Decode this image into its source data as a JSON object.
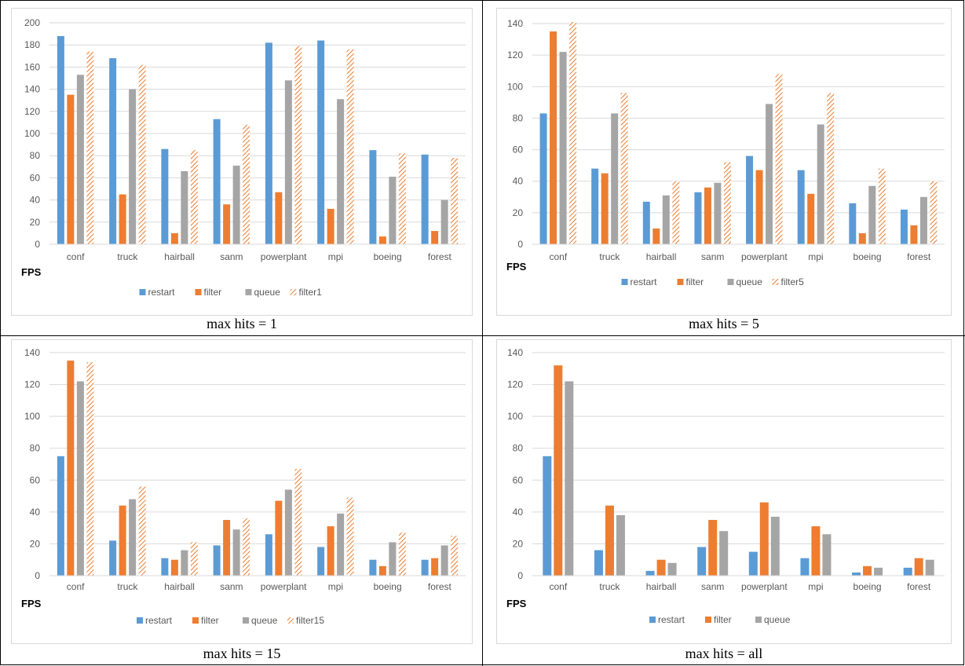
{
  "colors": {
    "restart": "#5b9bd5",
    "filter": "#ed7d31",
    "queue": "#a5a5a5",
    "hatch": "#ed7d31",
    "gridline": "#d9d9d9",
    "axis_text": "#595959",
    "ylabel_text": "#000000"
  },
  "chart_data": [
    {
      "type": "bar",
      "caption": "max hits = 1",
      "ylabel": "FPS",
      "ylim": [
        0,
        200
      ],
      "yticks": [
        0,
        20,
        40,
        60,
        80,
        100,
        120,
        140,
        160,
        180,
        200
      ],
      "categories": [
        "conf",
        "truck",
        "hairball",
        "sanm",
        "powerplant",
        "mpi",
        "boeing",
        "forest"
      ],
      "legend_position": "bottom",
      "grid": true,
      "series": [
        {
          "name": "restart",
          "style": "solid",
          "values": [
            188,
            168,
            86,
            113,
            182,
            184,
            85,
            81
          ]
        },
        {
          "name": "filter",
          "style": "solid",
          "values": [
            135,
            45,
            10,
            36,
            47,
            32,
            7,
            12
          ]
        },
        {
          "name": "queue",
          "style": "solid",
          "values": [
            153,
            140,
            66,
            71,
            148,
            131,
            61,
            40
          ]
        },
        {
          "name": "filter1",
          "style": "hatched",
          "values": [
            174,
            162,
            85,
            108,
            179,
            176,
            82,
            78
          ]
        }
      ]
    },
    {
      "type": "bar",
      "caption": "max hits = 5",
      "ylabel": "FPS",
      "ylim": [
        0,
        140
      ],
      "yticks": [
        0,
        20,
        40,
        60,
        80,
        100,
        120,
        140
      ],
      "categories": [
        "conf",
        "truck",
        "hairball",
        "sanm",
        "powerplant",
        "mpi",
        "boeing",
        "forest"
      ],
      "legend_position": "bottom",
      "grid": true,
      "series": [
        {
          "name": "restart",
          "style": "solid",
          "values": [
            83,
            48,
            27,
            33,
            56,
            47,
            26,
            22
          ]
        },
        {
          "name": "filter",
          "style": "solid",
          "values": [
            135,
            45,
            10,
            36,
            47,
            32,
            7,
            12
          ]
        },
        {
          "name": "queue",
          "style": "solid",
          "values": [
            122,
            83,
            31,
            39,
            89,
            76,
            37,
            30
          ]
        },
        {
          "name": "filter5",
          "style": "hatched",
          "values": [
            141,
            96,
            40,
            52,
            108,
            96,
            48,
            40
          ]
        }
      ]
    },
    {
      "type": "bar",
      "caption": "max hits = 15",
      "ylabel": "FPS",
      "ylim": [
        0,
        140
      ],
      "yticks": [
        0,
        20,
        40,
        60,
        80,
        100,
        120,
        140
      ],
      "categories": [
        "conf",
        "truck",
        "hairball",
        "sanm",
        "powerplant",
        "mpi",
        "boeing",
        "forest"
      ],
      "legend_position": "bottom",
      "grid": true,
      "series": [
        {
          "name": "restart",
          "style": "solid",
          "values": [
            75,
            22,
            11,
            19,
            26,
            18,
            10,
            10
          ]
        },
        {
          "name": "filter",
          "style": "solid",
          "values": [
            135,
            44,
            10,
            35,
            47,
            31,
            6,
            11
          ]
        },
        {
          "name": "queue",
          "style": "solid",
          "values": [
            122,
            48,
            16,
            29,
            54,
            39,
            21,
            19
          ]
        },
        {
          "name": "filter15",
          "style": "hatched",
          "values": [
            134,
            56,
            21,
            36,
            67,
            49,
            27,
            25
          ]
        }
      ]
    },
    {
      "type": "bar",
      "caption": "max hits = all",
      "ylabel": "FPS",
      "ylim": [
        0,
        140
      ],
      "yticks": [
        0,
        20,
        40,
        60,
        80,
        100,
        120,
        140
      ],
      "categories": [
        "conf",
        "truck",
        "hairball",
        "sanm",
        "powerplant",
        "mpi",
        "boeing",
        "forest"
      ],
      "legend_position": "bottom",
      "grid": true,
      "series": [
        {
          "name": "restart",
          "style": "solid",
          "values": [
            75,
            16,
            3,
            18,
            15,
            11,
            2,
            5
          ]
        },
        {
          "name": "filter",
          "style": "solid",
          "values": [
            132,
            44,
            10,
            35,
            46,
            31,
            6,
            11
          ]
        },
        {
          "name": "queue",
          "style": "solid",
          "values": [
            122,
            38,
            8,
            28,
            37,
            26,
            5,
            10
          ]
        }
      ]
    }
  ]
}
